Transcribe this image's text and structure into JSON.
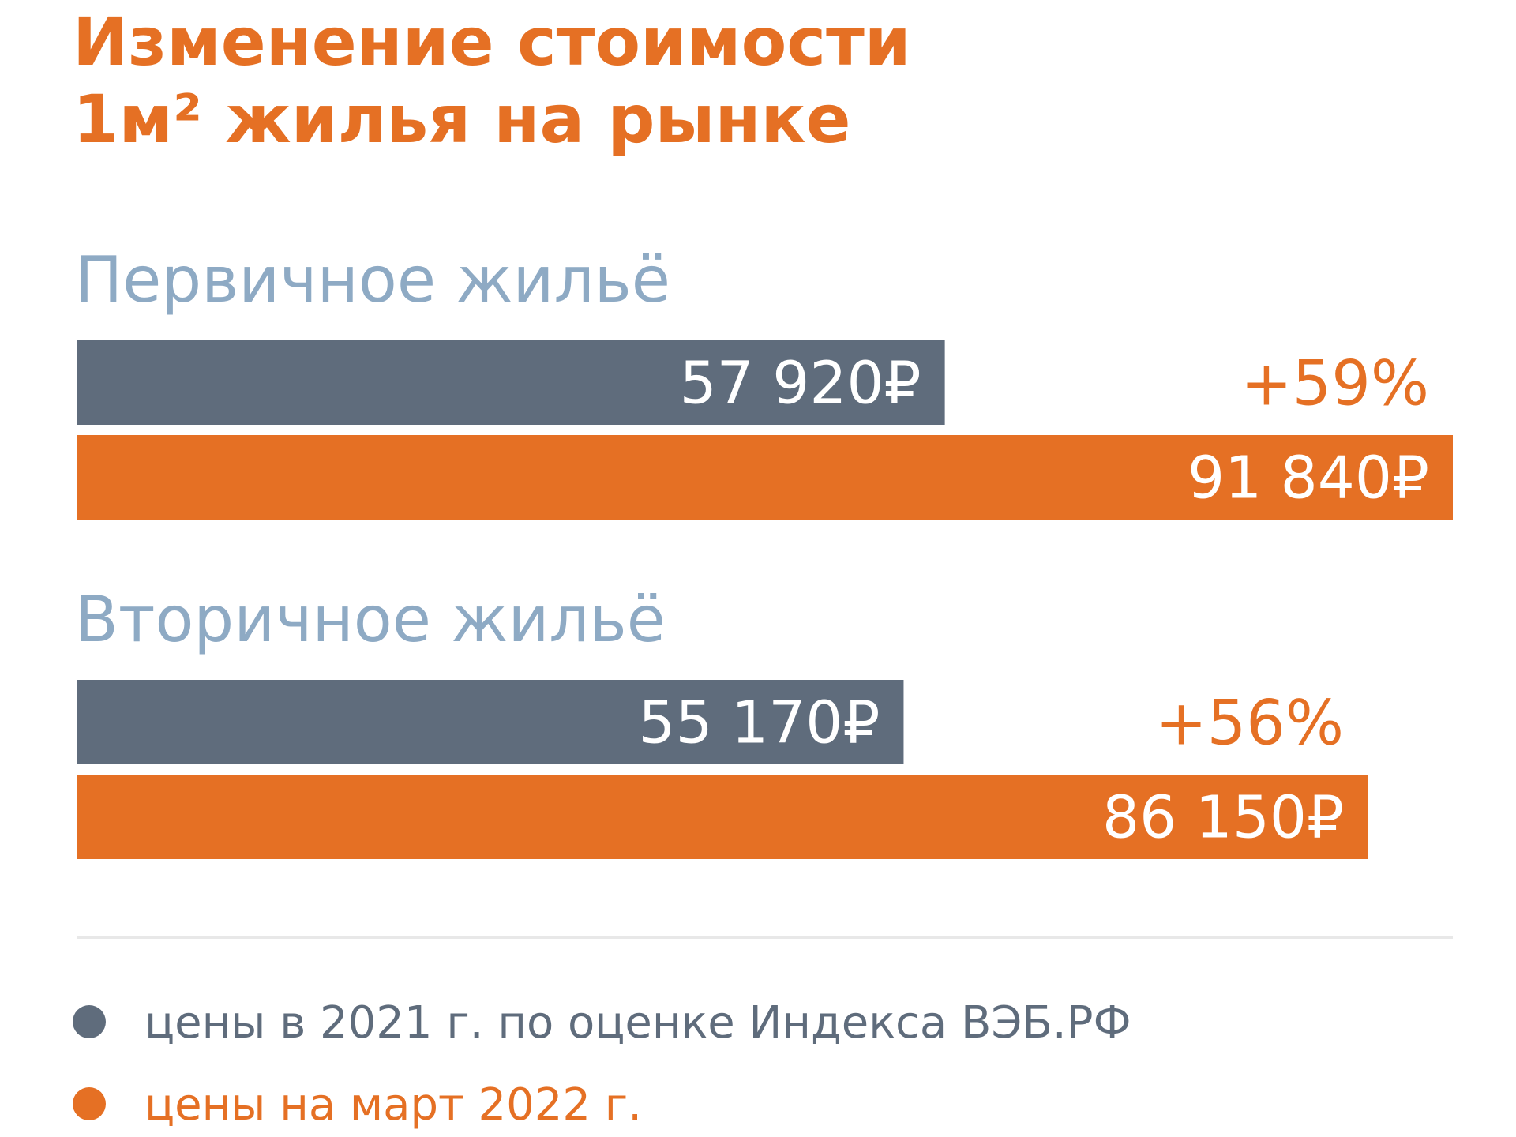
{
  "colors": {
    "accent": "#E57024",
    "series_2021": "#5F6C7C",
    "group_label": "#8EAAC4",
    "background": "#FFFFFF",
    "divider": "#E8E8E8",
    "bar_text": "#FFFFFF"
  },
  "chart_data": {
    "type": "bar",
    "orientation": "horizontal",
    "title_lines": [
      "Изменение стоимости",
      "1м² жилья на рынке"
    ],
    "categories": [
      "Первичное жильё",
      "Вторичное жильё"
    ],
    "series": [
      {
        "name": "цены в 2021 г. по оценке Индекса ВЭБ.РФ",
        "values": [
          57920,
          55170
        ],
        "labels": [
          "57 920₽",
          "55 170₽"
        ]
      },
      {
        "name": "цены на март 2022 г.",
        "values": [
          91840,
          86150
        ],
        "labels": [
          "91 840₽",
          "86 150₽"
        ]
      }
    ],
    "change_labels": [
      "+59%",
      "+56%"
    ],
    "unit": "₽",
    "xlim": [
      0,
      91840
    ],
    "grid": false,
    "legend_position": "bottom-left"
  }
}
